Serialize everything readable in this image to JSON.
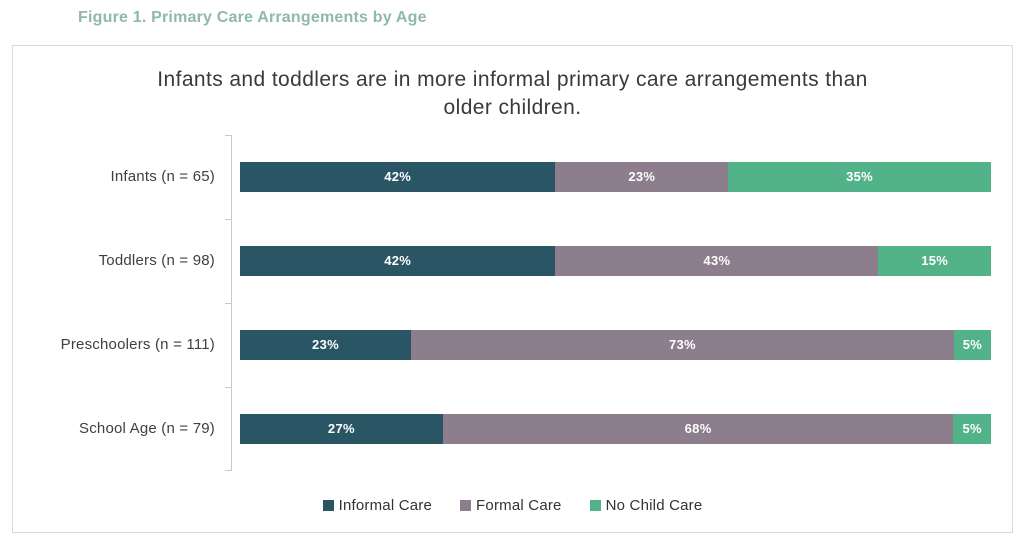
{
  "figure_title": "Figure 1. Primary Care Arrangements by Age",
  "chart_data": {
    "type": "bar",
    "variant": "horizontal-stacked",
    "title": "Infants and toddlers are in more informal primary care arrangements than older children.",
    "categories": [
      "Infants (n = 65)",
      "Toddlers (n = 98)",
      "Preschoolers (n = 111)",
      "School Age (n = 79)"
    ],
    "series": [
      {
        "name": "Informal Care",
        "color": "#2a5564",
        "values": [
          42,
          42,
          23,
          27
        ]
      },
      {
        "name": "Formal Care",
        "color": "#8c7e8c",
        "values": [
          23,
          43,
          73,
          68
        ]
      },
      {
        "name": "No Child Care",
        "color": "#52b388",
        "values": [
          35,
          15,
          5,
          5
        ]
      }
    ],
    "value_suffix": "%",
    "xlim": [
      0,
      100
    ],
    "grid": false,
    "legend_position": "bottom"
  },
  "colors": {
    "figure_title_text": "#8fb9a8",
    "chart_title_text": "#3a3a3a",
    "axis_line": "#c9c9c9",
    "panel_border": "#d9d9d9",
    "category_label_text": "#3f3f3f",
    "value_label_text": "#ffffff"
  }
}
